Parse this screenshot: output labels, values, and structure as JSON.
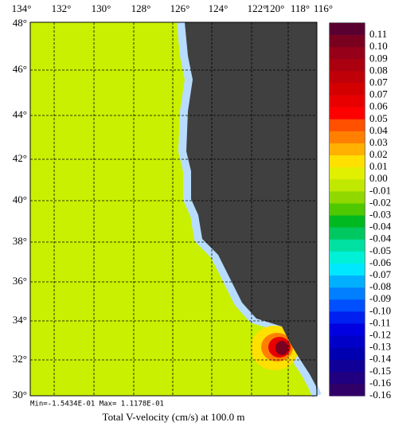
{
  "map": {
    "title": "Total V-velocity (cm/s) at 100.0 m",
    "minmax": "Min=-1.5434E-01  Max= 1.1178E-01",
    "lon_labels": [
      "134°",
      "132°",
      "130°",
      "128°",
      "126°",
      "124°",
      "122°",
      "120°",
      "118°",
      "116°"
    ],
    "lat_labels": [
      "48°",
      "46°",
      "44°",
      "42°",
      "40°",
      "38°",
      "36°",
      "34°",
      "32°",
      "30°"
    ]
  },
  "colorbar": {
    "labels": [
      "0.11",
      "0.10",
      "0.09",
      "0.08",
      "0.07",
      "0.07",
      "0.06",
      "0.05",
      "0.04",
      "0.03",
      "0.02",
      "0.01",
      "0.00",
      "-0.01",
      "-0.02",
      "-0.03",
      "-0.04",
      "-0.04",
      "-0.05",
      "-0.06",
      "-0.07",
      "-0.08",
      "-0.09",
      "-0.10",
      "-0.11",
      "-0.12",
      "-0.13",
      "-0.14",
      "-0.15",
      "-0.16",
      "-0.16"
    ],
    "colors": [
      "#5a0030",
      "#7a0020",
      "#960018",
      "#aa0010",
      "#c00008",
      "#d40000",
      "#e80000",
      "#ff0000",
      "#ff5000",
      "#ff8000",
      "#ffb000",
      "#ffe000",
      "#e0f000",
      "#c0e800",
      "#90d800",
      "#50c800",
      "#00b820",
      "#00c860",
      "#00e0a0",
      "#00f0d8",
      "#00e8ff",
      "#00b0ff",
      "#0080ff",
      "#0050ff",
      "#0020f0",
      "#0000e0",
      "#0000c8",
      "#0000b0",
      "#100098",
      "#200080",
      "#300068"
    ]
  }
}
